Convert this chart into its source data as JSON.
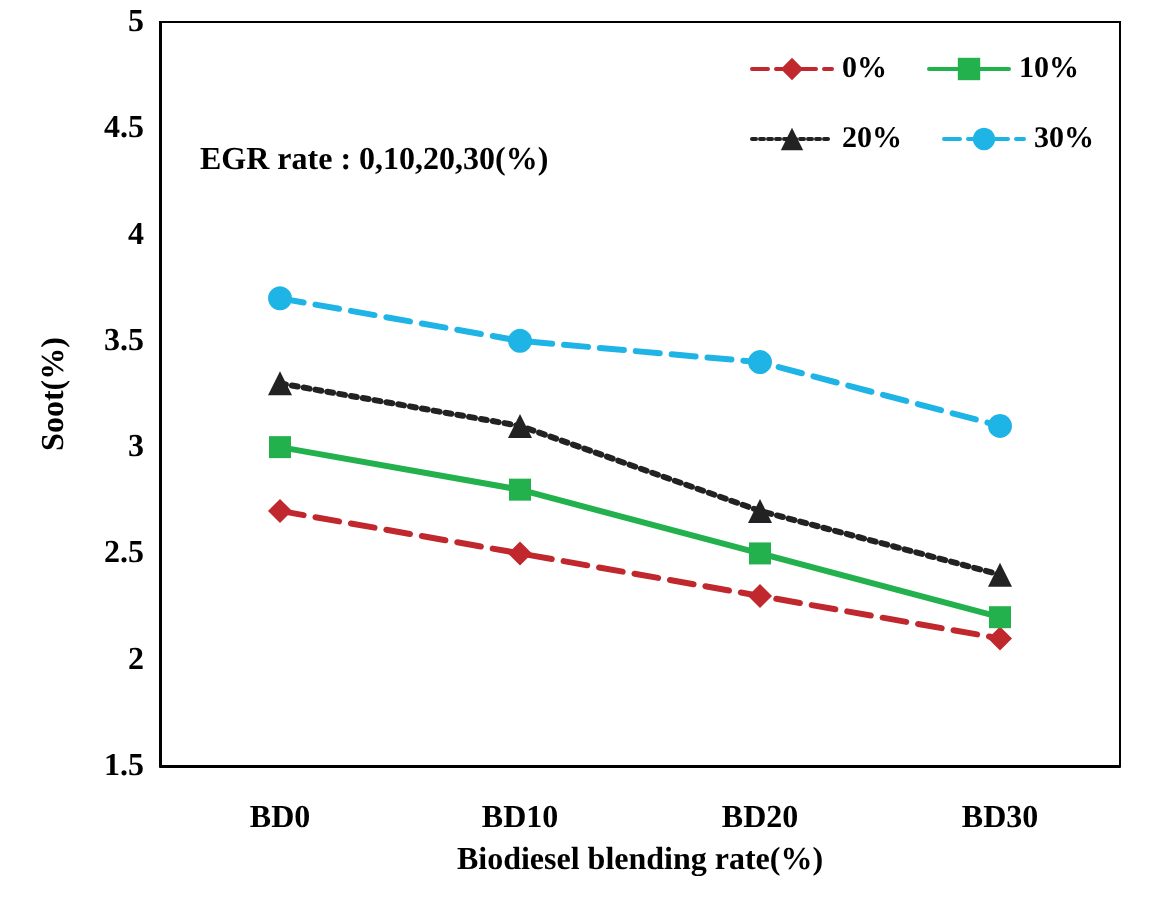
{
  "chart_data": {
    "type": "line",
    "xlabel": "Biodiesel blending rate(%)",
    "ylabel": "Soot(%)",
    "categories": [
      "BD0",
      "BD10",
      "BD20",
      "BD30"
    ],
    "series": [
      {
        "name": "0%",
        "color": "#c0282d",
        "values": [
          2.7,
          2.5,
          2.3,
          2.1
        ],
        "marker": "diamond",
        "line_style": "dashed"
      },
      {
        "name": "10%",
        "color": "#22b14c",
        "values": [
          3.0,
          2.8,
          2.5,
          2.2
        ],
        "marker": "square",
        "line_style": "solid"
      },
      {
        "name": "20%",
        "color": "#222222",
        "values": [
          3.3,
          3.1,
          2.7,
          2.4
        ],
        "marker": "triangle",
        "line_style": "dotted"
      },
      {
        "name": "30%",
        "color": "#1fb4e6",
        "values": [
          3.7,
          3.5,
          3.4,
          3.1
        ],
        "marker": "circle",
        "line_style": "dashed"
      }
    ],
    "ylim": [
      1.5,
      5
    ],
    "yticks": [
      1.5,
      2,
      2.5,
      3,
      3.5,
      4,
      4.5,
      5
    ],
    "grid": false,
    "legend": "top right",
    "annotations": [
      "EGR rate : 0,10,20,30(%)"
    ]
  }
}
